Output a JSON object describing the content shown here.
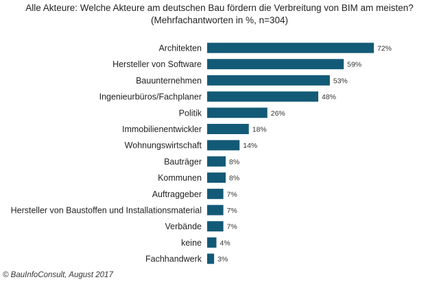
{
  "chart_data": {
    "type": "bar",
    "orientation": "horizontal",
    "title": "Alle Akteure: Welche Akteure am deutschen Bau fördern die Verbreitung von BIM am meisten?",
    "subtitle": "(Mehrfachantworten in %, n=304)",
    "categories": [
      "Architekten",
      "Hersteller von Software",
      "Bauunternehmen",
      "Ingenieurbüros/Fachplaner",
      "Politik",
      "Immobilienentwickler",
      "Wohnungswirtschaft",
      "Bauträger",
      "Kommunen",
      "Auftraggeber",
      "Hersteller von Baustoffen und Installationsmaterial",
      "Verbände",
      "keine",
      "Fachhandwerk"
    ],
    "values": [
      72,
      59,
      53,
      48,
      26,
      18,
      14,
      8,
      8,
      7,
      7,
      7,
      4,
      3
    ],
    "value_suffix": "%",
    "xlabel": "",
    "ylabel": "",
    "xlim": [
      0,
      72
    ],
    "grid": false,
    "bar_color": "#135a77"
  },
  "footer": "© BauInfoConsult, August 2017"
}
